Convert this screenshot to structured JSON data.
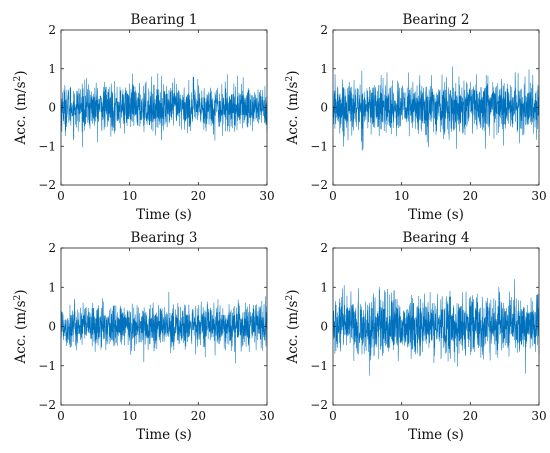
{
  "chart_data": [
    {
      "type": "line",
      "title": "Bearing 1",
      "xlabel": "Time (s)",
      "ylabel": "Acc.  (m/s",
      "ylabel_sup": "2",
      "ylabel_close": ")",
      "xlim": [
        0,
        30
      ],
      "ylim": [
        -2,
        2
      ],
      "xticks": [
        0,
        10,
        20,
        30
      ],
      "yticks": [
        -2,
        -1,
        0,
        1,
        2
      ],
      "xtick_labels": [
        "0",
        "10",
        "20",
        "30"
      ],
      "ytick_labels": [
        "−2",
        "−1",
        "0",
        "1",
        "2"
      ],
      "grid": false,
      "color": "#0072BD",
      "series": [
        {
          "signal": "vibration acceleration",
          "duration_s": 30,
          "typical_peak": 0.7,
          "max_peak": 1.15,
          "min_peak": -1.05
        }
      ]
    },
    {
      "type": "line",
      "title": "Bearing 2",
      "xlabel": "Time (s)",
      "ylabel": "Acc.  (m/s",
      "ylabel_sup": "2",
      "ylabel_close": ")",
      "xlim": [
        0,
        30
      ],
      "ylim": [
        -2,
        2
      ],
      "xticks": [
        0,
        10,
        20,
        30
      ],
      "yticks": [
        -2,
        -1,
        0,
        1,
        2
      ],
      "xtick_labels": [
        "0",
        "10",
        "20",
        "30"
      ],
      "ytick_labels": [
        "−2",
        "−1",
        "0",
        "1",
        "2"
      ],
      "grid": false,
      "color": "#0072BD",
      "series": [
        {
          "signal": "vibration acceleration",
          "duration_s": 30,
          "typical_peak": 0.8,
          "max_peak": 1.1,
          "min_peak": -1.2
        }
      ]
    },
    {
      "type": "line",
      "title": "Bearing 3",
      "xlabel": "Time (s)",
      "ylabel": "Acc.  (m/s",
      "ylabel_sup": "2",
      "ylabel_close": ")",
      "xlim": [
        0,
        30
      ],
      "ylim": [
        -2,
        2
      ],
      "xticks": [
        0,
        10,
        20,
        30
      ],
      "yticks": [
        -2,
        -1,
        0,
        1,
        2
      ],
      "xtick_labels": [
        "0",
        "10",
        "20",
        "30"
      ],
      "ytick_labels": [
        "−2",
        "−1",
        "0",
        "1",
        "2"
      ],
      "grid": false,
      "color": "#0072BD",
      "series": [
        {
          "signal": "vibration acceleration",
          "duration_s": 30,
          "typical_peak": 0.65,
          "max_peak": 0.95,
          "min_peak": -1.1
        }
      ]
    },
    {
      "type": "line",
      "title": "Bearing 4",
      "xlabel": "Time (s)",
      "ylabel": "Acc.  (m/s",
      "ylabel_sup": "2",
      "ylabel_close": ")",
      "xlim": [
        0,
        30
      ],
      "ylim": [
        -2,
        2
      ],
      "xticks": [
        0,
        10,
        20,
        30
      ],
      "yticks": [
        -2,
        -1,
        0,
        1,
        2
      ],
      "xtick_labels": [
        "0",
        "10",
        "20",
        "30"
      ],
      "ytick_labels": [
        "−2",
        "−1",
        "0",
        "1",
        "2"
      ],
      "grid": false,
      "color": "#0072BD",
      "series": [
        {
          "signal": "vibration acceleration",
          "duration_s": 30,
          "typical_peak": 0.9,
          "max_peak": 1.3,
          "min_peak": -1.25
        }
      ]
    }
  ]
}
